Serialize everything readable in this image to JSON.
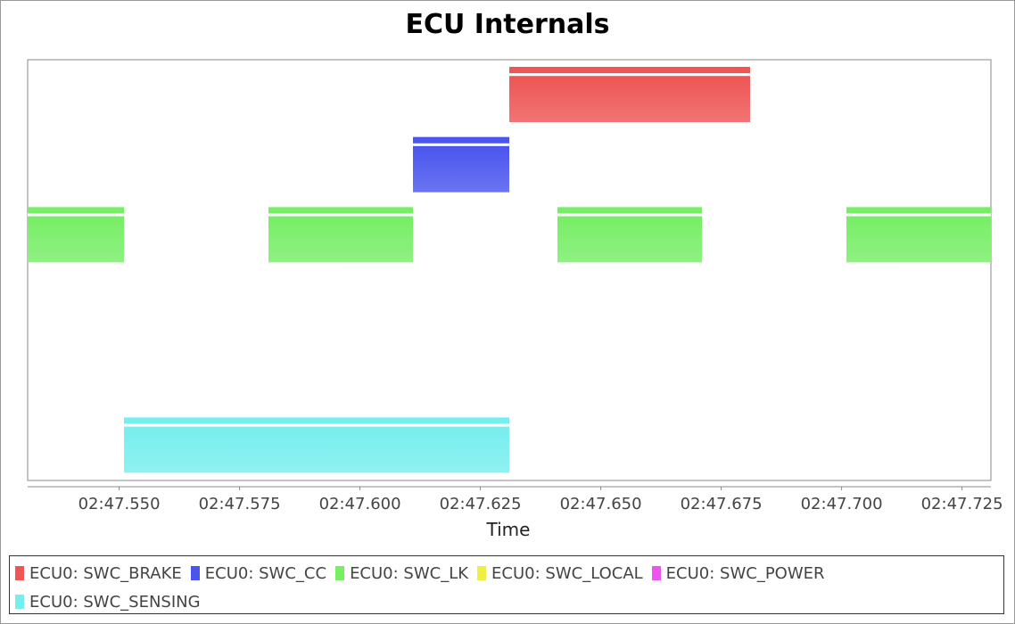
{
  "chart_data": {
    "type": "gantt",
    "title": "ECU Internals",
    "xlabel": "Time",
    "ylabel": "",
    "xlim": [
      "02:47.531",
      "02:47.731"
    ],
    "x_ticks": [
      "02:47.550",
      "02:47.575",
      "02:47.600",
      "02:47.625",
      "02:47.650",
      "02:47.675",
      "02:47.700",
      "02:47.725"
    ],
    "x_tick_values_ms": [
      550,
      575,
      600,
      625,
      650,
      675,
      700,
      725
    ],
    "grid": false,
    "legend_position": "bottom",
    "series": [
      {
        "name": "ECU0: SWC_BRAKE",
        "color": "#ee5555",
        "row": 0,
        "intervals": [
          {
            "start": "02:47.631",
            "end": "02:47.681"
          }
        ]
      },
      {
        "name": "ECU0: SWC_CC",
        "color": "#4a55ee",
        "row": 1,
        "intervals": [
          {
            "start": "02:47.611",
            "end": "02:47.631"
          }
        ]
      },
      {
        "name": "ECU0: SWC_LK",
        "color": "#77ee66",
        "row": 2,
        "intervals": [
          {
            "start": "02:47.531",
            "end": "02:47.551"
          },
          {
            "start": "02:47.581",
            "end": "02:47.611"
          },
          {
            "start": "02:47.641",
            "end": "02:47.671"
          },
          {
            "start": "02:47.701",
            "end": "02:47.731"
          }
        ]
      },
      {
        "name": "ECU0: SWC_LOCAL",
        "color": "#eeee44",
        "row": 3,
        "intervals": []
      },
      {
        "name": "ECU0: SWC_POWER",
        "color": "#ee55ee",
        "row": 4,
        "intervals": []
      },
      {
        "name": "ECU0: SWC_SENSING",
        "color": "#77eeee",
        "row": 5,
        "intervals": [
          {
            "start": "02:47.551",
            "end": "02:47.631"
          }
        ]
      }
    ]
  }
}
